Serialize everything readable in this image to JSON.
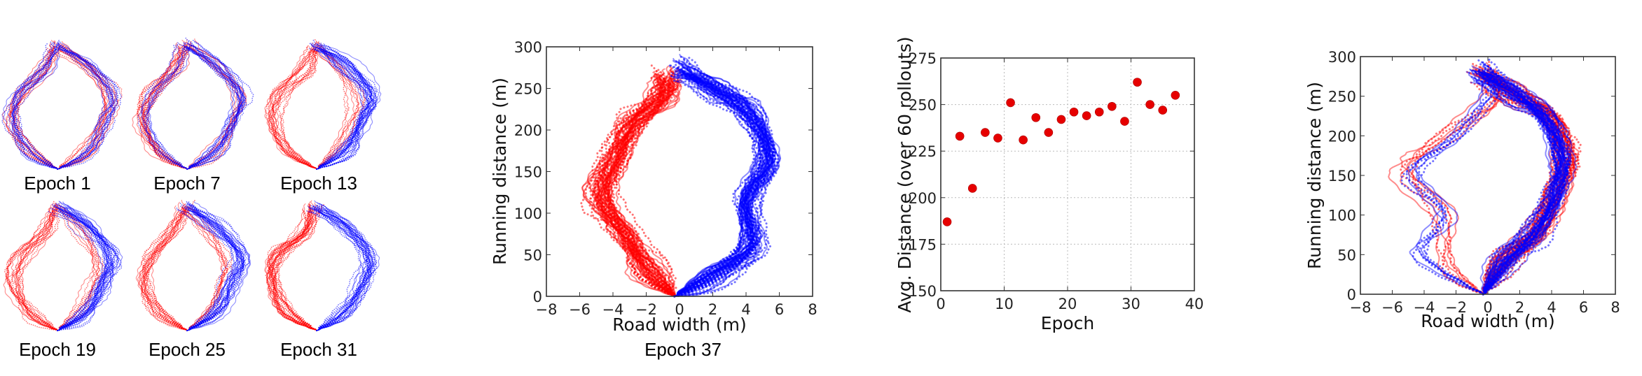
{
  "colors": {
    "red": "#ff0000",
    "blue": "#0000ff",
    "marker": "#e60000"
  },
  "chart_data": [
    {
      "id": "thumbnails",
      "type": "line",
      "description_of_marks": "rollout trajectories (road width vs running distance), red and blue agents",
      "panels": [
        {
          "caption": "Epoch 1",
          "red_paths": [
            "L",
            "R"
          ],
          "blue_paths": [
            "L",
            "R"
          ]
        },
        {
          "caption": "Epoch 7",
          "red_paths": [
            "L",
            "L",
            "R"
          ],
          "blue_paths": [
            "R",
            "R",
            "L"
          ]
        },
        {
          "caption": "Epoch 13",
          "red_paths": [
            "L",
            "L",
            "M"
          ],
          "blue_paths": [
            "R"
          ]
        },
        {
          "caption": "Epoch 19",
          "red_paths": [
            "L",
            "L",
            "M"
          ],
          "blue_paths": [
            "R"
          ]
        },
        {
          "caption": "Epoch 25",
          "red_paths": [
            "L",
            "L",
            "M"
          ],
          "blue_paths": [
            "R"
          ]
        },
        {
          "caption": "Epoch 31",
          "red_paths": [
            "L"
          ],
          "blue_paths": [
            "R"
          ]
        }
      ],
      "mean_paths": {
        "L": [
          [
            -0.3,
            0
          ],
          [
            -3,
            40
          ],
          [
            -4.5,
            110
          ],
          [
            -3.8,
            170
          ],
          [
            -1.5,
            230
          ],
          [
            -0.5,
            285
          ]
        ],
        "R": [
          [
            -0.3,
            0
          ],
          [
            2.5,
            40
          ],
          [
            4,
            110
          ],
          [
            4.8,
            170
          ],
          [
            2.5,
            240
          ],
          [
            -0.3,
            285
          ]
        ],
        "M": [
          [
            -0.3,
            0
          ],
          [
            1.8,
            50
          ],
          [
            3,
            110
          ],
          [
            3.5,
            160
          ],
          [
            2,
            230
          ],
          [
            -0.2,
            285
          ]
        ]
      }
    },
    {
      "id": "epoch37",
      "type": "line",
      "caption": "Epoch 37",
      "xlabel": "Road width (m)",
      "ylabel": "Running distance (m)",
      "xlim": [
        -8,
        8
      ],
      "ylim": [
        0,
        300
      ],
      "xticks": [
        "−8",
        "−6",
        "−4",
        "−2",
        "0",
        "2",
        "4",
        "6",
        "8"
      ],
      "yticks": [
        "0",
        "50",
        "100",
        "150",
        "200",
        "250",
        "300"
      ],
      "series": [
        {
          "name": "red",
          "paths": [
            [
              [
                -0.3,
                0
              ],
              [
                -1.8,
                30
              ],
              [
                -3.2,
                70
              ],
              [
                -4.6,
                120
              ],
              [
                -4,
                165
              ],
              [
                -2.8,
                205
              ],
              [
                -1,
                240
              ],
              [
                -0.8,
                265
              ]
            ]
          ]
        },
        {
          "name": "blue",
          "paths": [
            [
              [
                -0.3,
                0
              ],
              [
                2,
                25
              ],
              [
                4.2,
                60
              ],
              [
                4,
                115
              ],
              [
                5.3,
                165
              ],
              [
                4.3,
                220
              ],
              [
                2,
                250
              ],
              [
                0,
                275
              ]
            ]
          ]
        }
      ]
    },
    {
      "id": "avg_distance",
      "type": "scatter",
      "xlabel": "Epoch",
      "ylabel": "Avg. Distance (over 60 rollouts)",
      "xlim": [
        0,
        40
      ],
      "ylim": [
        150,
        275
      ],
      "xticks": [
        "0",
        "10",
        "20",
        "30",
        "40"
      ],
      "yticks": [
        "150",
        "175",
        "200",
        "225",
        "250",
        "275"
      ],
      "grid": true,
      "x": [
        1,
        3,
        5,
        7,
        9,
        11,
        13,
        15,
        17,
        19,
        21,
        23,
        25,
        27,
        29,
        31,
        33,
        35,
        37
      ],
      "y": [
        187,
        233,
        205,
        235,
        232,
        251,
        231,
        243,
        235,
        242,
        246,
        244,
        246,
        249,
        241,
        262,
        250,
        247,
        255
      ]
    },
    {
      "id": "final",
      "type": "line",
      "xlabel": "Road width (m)",
      "ylabel": "Running distance (m)",
      "xlim": [
        -8,
        8
      ],
      "ylim": [
        0,
        300
      ],
      "xticks": [
        "−8",
        "−6",
        "−4",
        "−2",
        "0",
        "2",
        "4",
        "6",
        "8"
      ],
      "yticks": [
        "0",
        "50",
        "100",
        "150",
        "200",
        "250",
        "300"
      ],
      "series": [
        {
          "name": "red",
          "paths": [
            [
              [
                -0.3,
                0
              ],
              [
                1,
                40
              ],
              [
                3,
                80
              ],
              [
                4.3,
                130
              ],
              [
                4.8,
                170
              ],
              [
                4,
                220
              ],
              [
                1.5,
                255
              ],
              [
                -0.5,
                280
              ]
            ],
            [
              [
                -0.3,
                0
              ],
              [
                -2.5,
                40
              ],
              [
                -2.8,
                100
              ],
              [
                -5.3,
                155
              ],
              [
                -3,
                200
              ],
              [
                0.5,
                250
              ],
              [
                0,
                280
              ]
            ]
          ]
        },
        {
          "name": "blue",
          "paths": [
            [
              [
                -0.3,
                0
              ],
              [
                1,
                40
              ],
              [
                3,
                80
              ],
              [
                4.3,
                130
              ],
              [
                4.6,
                170
              ],
              [
                3.8,
                220
              ],
              [
                1.5,
                255
              ],
              [
                -0.5,
                280
              ]
            ],
            [
              [
                -0.3,
                0
              ],
              [
                -4,
                55
              ],
              [
                -2.5,
                100
              ],
              [
                -4.5,
                150
              ],
              [
                -2,
                200
              ],
              [
                0.5,
                255
              ],
              [
                -0.5,
                282
              ]
            ]
          ]
        }
      ]
    }
  ]
}
